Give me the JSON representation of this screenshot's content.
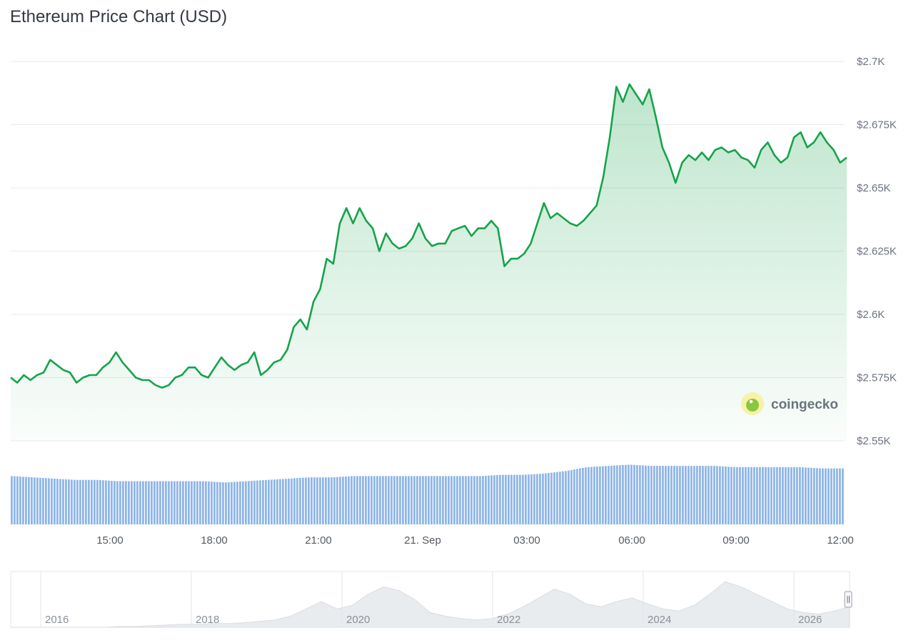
{
  "title": "Ethereum Price Chart (USD)",
  "watermark": "coingecko",
  "colors": {
    "line": "#16a34a",
    "area": "#16a34a",
    "volume": "#8fb6e6",
    "grid": "#e8eaed"
  },
  "chart_data": {
    "type": "line",
    "title": "Ethereum Price Chart (USD)",
    "y_axis": {
      "min": 2550,
      "max": 2700,
      "ticks": [
        "$2.55K",
        "$2.575K",
        "$2.6K",
        "$2.625K",
        "$2.65K",
        "$2.675K",
        "$2.7K"
      ]
    },
    "x_ticks": [
      "15:00",
      "18:00",
      "21:00",
      "21. Sep",
      "03:00",
      "06:00",
      "09:00",
      "12:00"
    ],
    "series": [
      {
        "values": [
          2575,
          2573,
          2576,
          2574,
          2576,
          2577,
          2582,
          2580,
          2578,
          2577,
          2573,
          2575,
          2576,
          2576,
          2579,
          2581,
          2585,
          2581,
          2578,
          2575,
          2574,
          2574,
          2572,
          2571,
          2572,
          2575,
          2576,
          2579,
          2579,
          2576,
          2575,
          2579,
          2583,
          2580,
          2578,
          2580,
          2581,
          2585,
          2576,
          2578,
          2581,
          2582,
          2586,
          2595,
          2598,
          2594,
          2605,
          2610,
          2622,
          2620,
          2636,
          2642,
          2636,
          2642,
          2637,
          2634,
          2625,
          2632,
          2628,
          2626,
          2627,
          2630,
          2636,
          2630,
          2627,
          2628,
          2628,
          2633,
          2634,
          2635,
          2631,
          2634,
          2634,
          2637,
          2634,
          2619,
          2622,
          2622,
          2624,
          2628,
          2636,
          2644,
          2638,
          2640,
          2638,
          2636,
          2635,
          2637,
          2640,
          2643,
          2654,
          2670,
          2690,
          2684,
          2691,
          2687,
          2683,
          2689,
          2678,
          2666,
          2660,
          2652,
          2660,
          2663,
          2661,
          2664,
          2661,
          2665,
          2666,
          2664,
          2665,
          2662,
          2661,
          2658,
          2665,
          2668,
          2663,
          2660,
          2662,
          2670,
          2672,
          2666,
          2668,
          2672,
          2668,
          2665,
          2660,
          2662
        ]
      },
      {
        "name": "volume",
        "values": [
          38,
          37,
          36,
          35,
          35,
          34,
          34,
          34,
          34,
          34,
          33,
          34,
          35,
          36,
          37,
          37,
          38,
          38,
          38,
          38,
          38,
          38,
          38,
          39,
          39,
          40,
          42,
          45,
          46,
          47,
          46,
          46,
          46,
          46,
          45,
          45,
          45,
          45,
          44,
          44
        ]
      }
    ],
    "navigator": {
      "x_ticks": [
        "2016",
        "2018",
        "2020",
        "2022",
        "2024",
        "2026"
      ],
      "values": [
        0,
        0,
        0,
        0,
        0,
        0,
        0,
        1,
        1,
        2,
        3,
        4,
        4,
        5,
        5,
        6,
        8,
        10,
        15,
        25,
        35,
        25,
        30,
        45,
        55,
        50,
        38,
        20,
        15,
        12,
        10,
        12,
        18,
        28,
        40,
        52,
        45,
        32,
        28,
        35,
        40,
        32,
        25,
        22,
        30,
        45,
        62,
        55,
        45,
        35,
        25,
        20,
        18,
        22,
        28
      ]
    }
  }
}
